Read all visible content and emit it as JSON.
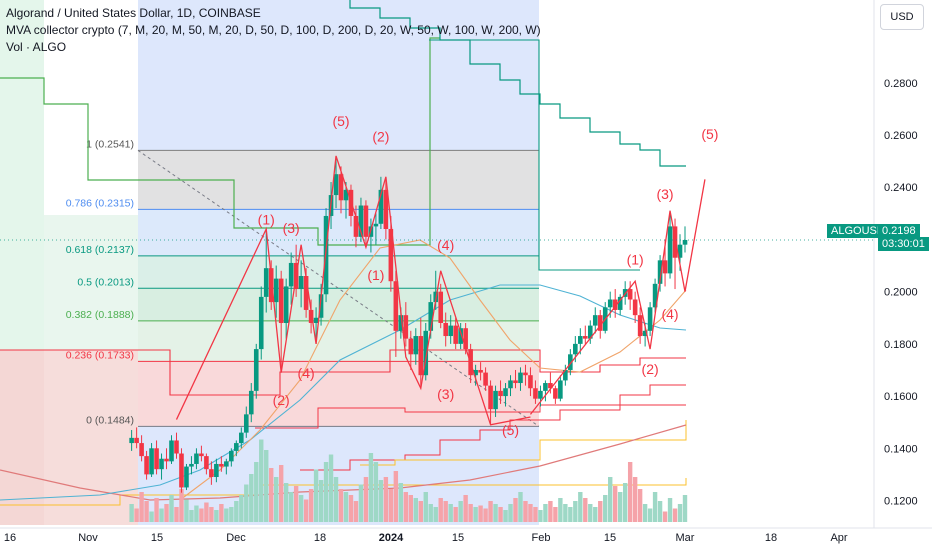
{
  "legend": {
    "title": "Algorand / United States Dollar, 1D, COINBASE",
    "indicator": "MVA collector crypto (7, M, 20, M, 50, M, 20, D, 50, D, 100, D, 200, D, 20, W, 50, W, 100, W, 200, W)",
    "volume": "Vol · ALGO"
  },
  "currency_button": "USD",
  "symbol_badge": {
    "name": "ALGOUSD",
    "price": "0.2198",
    "timer": "03:30:01"
  },
  "colors": {
    "up": "#089981",
    "down": "#f23645",
    "wave": "#f23645",
    "fib_blue": "#4f8df0"
  },
  "chart_data": {
    "type": "candlestick",
    "y_axis": {
      "ticks": [
        "0.2800",
        "0.2600",
        "0.2400",
        "0.2200",
        "0.2000",
        "0.1800",
        "0.1600",
        "0.1400",
        "0.1200"
      ],
      "range": [
        0.111,
        0.301
      ]
    },
    "x_axis": {
      "ticks": [
        "16",
        "Nov",
        "15",
        "Dec",
        "18",
        "2024",
        "15",
        "Feb",
        "15",
        "Mar",
        "18",
        "Apr"
      ]
    },
    "fib_levels": [
      {
        "label": "1 (0.2541)",
        "value": 0.2541
      },
      {
        "label": "0.786 (0.2315)",
        "value": 0.2315
      },
      {
        "label": "0.618 (0.2137)",
        "value": 0.2137
      },
      {
        "label": "0.5 (0.2013)",
        "value": 0.2013
      },
      {
        "label": "0.382 (0.1888)",
        "value": 0.1888
      },
      {
        "label": "0.236 (0.1733)",
        "value": 0.1733
      },
      {
        "label": "0 (0.1484)",
        "value": 0.1484
      }
    ],
    "wave_labels": [
      {
        "text": "(1)",
        "x": "2023-12-08",
        "y": 0.2257
      },
      {
        "text": "(2)",
        "x": "2023-12-11",
        "y": 0.1565
      },
      {
        "text": "(3)",
        "x": "2023-12-13",
        "y": 0.2225
      },
      {
        "text": "(4)",
        "x": "2023-12-16",
        "y": 0.167
      },
      {
        "text": "(5)",
        "x": "2023-12-23",
        "y": 0.2635
      },
      {
        "text": "(1)",
        "x": "2023-12-30",
        "y": 0.2045
      },
      {
        "text": "(2)",
        "x": "2023-12-31",
        "y": 0.2575
      },
      {
        "text": "(3)",
        "x": "2024-01-13",
        "y": 0.1588
      },
      {
        "text": "(4)",
        "x": "2024-01-13",
        "y": 0.216
      },
      {
        "text": "(5)",
        "x": "2024-01-26",
        "y": 0.145
      },
      {
        "text": "(1)",
        "x": "2024-02-20",
        "y": 0.2105
      },
      {
        "text": "(2)",
        "x": "2024-02-23",
        "y": 0.1685
      },
      {
        "text": "(3)",
        "x": "2024-02-26",
        "y": 0.2355
      },
      {
        "text": "(4)",
        "x": "2024-02-27",
        "y": 0.1895
      },
      {
        "text": "(5)",
        "x": "2024-03-06",
        "y": 0.2585
      }
    ],
    "wave_paths": [
      [
        [
          "2023-11-20",
          0.151
        ],
        [
          "2023-12-08",
          0.224
        ],
        [
          "2023-12-11",
          0.169
        ],
        [
          "2023-12-15",
          0.218
        ],
        [
          "2023-12-18",
          0.18
        ],
        [
          "2023-12-22",
          0.252
        ],
        [
          "2023-12-28",
          0.217
        ],
        [
          "2024-01-01",
          0.244
        ],
        [
          "2024-01-05",
          0.175
        ],
        [
          "2024-01-08",
          0.163
        ],
        [
          "2024-01-12",
          0.208
        ],
        [
          "2024-01-22",
          0.149
        ],
        [
          "2024-01-30",
          0.152
        ]
      ],
      [
        [
          "2024-01-30",
          0.153
        ],
        [
          "2024-02-20",
          0.204
        ],
        [
          "2024-02-23",
          0.178
        ],
        [
          "2024-02-27",
          0.231
        ],
        [
          "2024-03-01",
          0.2
        ],
        [
          "2024-03-05",
          0.243
        ]
      ]
    ],
    "candles": [
      [
        "2023-11-11",
        0.142,
        0.147,
        0.139,
        0.144
      ],
      [
        "2023-11-12",
        0.144,
        0.148,
        0.14,
        0.142
      ],
      [
        "2023-11-13",
        0.142,
        0.145,
        0.135,
        0.137
      ],
      [
        "2023-11-14",
        0.137,
        0.139,
        0.128,
        0.13
      ],
      [
        "2023-11-15",
        0.13,
        0.142,
        0.129,
        0.14
      ],
      [
        "2023-11-16",
        0.14,
        0.143,
        0.13,
        0.132
      ],
      [
        "2023-11-17",
        0.132,
        0.138,
        0.128,
        0.136
      ],
      [
        "2023-11-18",
        0.136,
        0.14,
        0.132,
        0.135
      ],
      [
        "2023-11-19",
        0.135,
        0.145,
        0.134,
        0.143
      ],
      [
        "2023-11-20",
        0.143,
        0.146,
        0.136,
        0.138
      ],
      [
        "2023-11-21",
        0.138,
        0.14,
        0.123,
        0.125
      ],
      [
        "2023-11-22",
        0.125,
        0.134,
        0.124,
        0.133
      ],
      [
        "2023-11-23",
        0.133,
        0.137,
        0.13,
        0.134
      ],
      [
        "2023-11-24",
        0.134,
        0.14,
        0.132,
        0.138
      ],
      [
        "2023-11-25",
        0.138,
        0.141,
        0.135,
        0.137
      ],
      [
        "2023-11-26",
        0.137,
        0.138,
        0.13,
        0.132
      ],
      [
        "2023-11-27",
        0.132,
        0.135,
        0.126,
        0.129
      ],
      [
        "2023-11-28",
        0.129,
        0.136,
        0.127,
        0.134
      ],
      [
        "2023-11-29",
        0.134,
        0.137,
        0.131,
        0.133
      ],
      [
        "2023-11-30",
        0.133,
        0.136,
        0.13,
        0.135
      ],
      [
        "2023-12-01",
        0.135,
        0.14,
        0.133,
        0.139
      ],
      [
        "2023-12-02",
        0.139,
        0.143,
        0.137,
        0.142
      ],
      [
        "2023-12-03",
        0.142,
        0.148,
        0.14,
        0.146
      ],
      [
        "2023-12-04",
        0.146,
        0.156,
        0.144,
        0.153
      ],
      [
        "2023-12-05",
        0.153,
        0.165,
        0.15,
        0.162
      ],
      [
        "2023-12-06",
        0.162,
        0.18,
        0.159,
        0.178
      ],
      [
        "2023-12-07",
        0.178,
        0.202,
        0.174,
        0.198
      ],
      [
        "2023-12-08",
        0.198,
        0.224,
        0.192,
        0.209
      ],
      [
        "2023-12-09",
        0.209,
        0.212,
        0.193,
        0.196
      ],
      [
        "2023-12-10",
        0.196,
        0.21,
        0.19,
        0.205
      ],
      [
        "2023-12-11",
        0.205,
        0.208,
        0.169,
        0.188
      ],
      [
        "2023-12-12",
        0.188,
        0.205,
        0.182,
        0.202
      ],
      [
        "2023-12-13",
        0.202,
        0.215,
        0.195,
        0.211
      ],
      [
        "2023-12-14",
        0.211,
        0.218,
        0.198,
        0.201
      ],
      [
        "2023-12-15",
        0.201,
        0.212,
        0.194,
        0.206
      ],
      [
        "2023-12-16",
        0.206,
        0.209,
        0.19,
        0.193
      ],
      [
        "2023-12-17",
        0.193,
        0.197,
        0.184,
        0.188
      ],
      [
        "2023-12-18",
        0.188,
        0.194,
        0.18,
        0.19
      ],
      [
        "2023-12-19",
        0.19,
        0.203,
        0.187,
        0.199
      ],
      [
        "2023-12-20",
        0.199,
        0.232,
        0.196,
        0.229
      ],
      [
        "2023-12-21",
        0.229,
        0.242,
        0.224,
        0.237
      ],
      [
        "2023-12-22",
        0.237,
        0.252,
        0.232,
        0.245
      ],
      [
        "2023-12-23",
        0.245,
        0.248,
        0.23,
        0.235
      ],
      [
        "2023-12-24",
        0.235,
        0.242,
        0.228,
        0.239
      ],
      [
        "2023-12-25",
        0.239,
        0.241,
        0.225,
        0.229
      ],
      [
        "2023-12-26",
        0.229,
        0.233,
        0.217,
        0.221
      ],
      [
        "2023-12-27",
        0.221,
        0.236,
        0.219,
        0.233
      ],
      [
        "2023-12-28",
        0.233,
        0.235,
        0.217,
        0.221
      ],
      [
        "2023-12-29",
        0.221,
        0.228,
        0.215,
        0.225
      ],
      [
        "2023-12-30",
        0.225,
        0.23,
        0.218,
        0.226
      ],
      [
        "2023-12-31",
        0.226,
        0.244,
        0.224,
        0.239
      ],
      [
        "2024-01-01",
        0.239,
        0.243,
        0.22,
        0.224
      ],
      [
        "2024-01-02",
        0.224,
        0.229,
        0.2,
        0.204
      ],
      [
        "2024-01-03",
        0.204,
        0.208,
        0.175,
        0.185
      ],
      [
        "2024-01-04",
        0.185,
        0.194,
        0.182,
        0.191
      ],
      [
        "2024-01-05",
        0.191,
        0.196,
        0.179,
        0.182
      ],
      [
        "2024-01-06",
        0.182,
        0.185,
        0.17,
        0.176
      ],
      [
        "2024-01-07",
        0.176,
        0.186,
        0.172,
        0.183
      ],
      [
        "2024-01-08",
        0.183,
        0.19,
        0.163,
        0.168
      ],
      [
        "2024-01-09",
        0.168,
        0.188,
        0.166,
        0.185
      ],
      [
        "2024-01-10",
        0.185,
        0.199,
        0.182,
        0.196
      ],
      [
        "2024-01-11",
        0.196,
        0.208,
        0.193,
        0.2
      ],
      [
        "2024-01-12",
        0.2,
        0.203,
        0.186,
        0.188
      ],
      [
        "2024-01-13",
        0.188,
        0.192,
        0.179,
        0.183
      ],
      [
        "2024-01-14",
        0.183,
        0.191,
        0.18,
        0.187
      ],
      [
        "2024-01-15",
        0.187,
        0.19,
        0.178,
        0.18
      ],
      [
        "2024-01-16",
        0.18,
        0.188,
        0.178,
        0.186
      ],
      [
        "2024-01-17",
        0.186,
        0.188,
        0.176,
        0.178
      ],
      [
        "2024-01-18",
        0.178,
        0.18,
        0.165,
        0.168
      ],
      [
        "2024-01-19",
        0.168,
        0.172,
        0.164,
        0.17
      ],
      [
        "2024-01-20",
        0.17,
        0.173,
        0.166,
        0.169
      ],
      [
        "2024-01-21",
        0.169,
        0.171,
        0.162,
        0.164
      ],
      [
        "2024-01-22",
        0.164,
        0.166,
        0.149,
        0.155
      ],
      [
        "2024-01-23",
        0.155,
        0.164,
        0.152,
        0.162
      ],
      [
        "2024-01-24",
        0.162,
        0.166,
        0.157,
        0.16
      ],
      [
        "2024-01-25",
        0.16,
        0.165,
        0.156,
        0.163
      ],
      [
        "2024-01-26",
        0.163,
        0.168,
        0.16,
        0.166
      ],
      [
        "2024-01-27",
        0.166,
        0.17,
        0.163,
        0.165
      ],
      [
        "2024-01-28",
        0.165,
        0.171,
        0.162,
        0.169
      ],
      [
        "2024-01-29",
        0.169,
        0.172,
        0.164,
        0.168
      ],
      [
        "2024-01-30",
        0.168,
        0.171,
        0.16,
        0.163
      ],
      [
        "2024-01-31",
        0.163,
        0.166,
        0.157,
        0.159
      ],
      [
        "2024-02-01",
        0.159,
        0.164,
        0.156,
        0.162
      ],
      [
        "2024-02-02",
        0.162,
        0.166,
        0.158,
        0.165
      ],
      [
        "2024-02-03",
        0.165,
        0.169,
        0.161,
        0.163
      ],
      [
        "2024-02-04",
        0.163,
        0.164,
        0.157,
        0.159
      ],
      [
        "2024-02-05",
        0.159,
        0.168,
        0.158,
        0.166
      ],
      [
        "2024-02-06",
        0.166,
        0.172,
        0.164,
        0.17
      ],
      [
        "2024-02-07",
        0.17,
        0.178,
        0.168,
        0.176
      ],
      [
        "2024-02-08",
        0.176,
        0.183,
        0.173,
        0.18
      ],
      [
        "2024-02-09",
        0.18,
        0.186,
        0.176,
        0.183
      ],
      [
        "2024-02-10",
        0.183,
        0.187,
        0.18,
        0.182
      ],
      [
        "2024-02-11",
        0.182,
        0.189,
        0.18,
        0.187
      ],
      [
        "2024-02-12",
        0.187,
        0.194,
        0.184,
        0.191
      ],
      [
        "2024-02-13",
        0.191,
        0.193,
        0.182,
        0.185
      ],
      [
        "2024-02-14",
        0.185,
        0.196,
        0.184,
        0.194
      ],
      [
        "2024-02-15",
        0.194,
        0.2,
        0.19,
        0.197
      ],
      [
        "2024-02-16",
        0.197,
        0.201,
        0.19,
        0.193
      ],
      [
        "2024-02-17",
        0.193,
        0.199,
        0.191,
        0.198
      ],
      [
        "2024-02-18",
        0.198,
        0.204,
        0.195,
        0.201
      ],
      [
        "2024-02-19",
        0.201,
        0.204,
        0.193,
        0.197
      ],
      [
        "2024-02-20",
        0.197,
        0.2,
        0.188,
        0.191
      ],
      [
        "2024-02-21",
        0.191,
        0.194,
        0.18,
        0.183
      ],
      [
        "2024-02-22",
        0.183,
        0.188,
        0.179,
        0.185
      ],
      [
        "2024-02-23",
        0.185,
        0.196,
        0.183,
        0.194
      ],
      [
        "2024-02-24",
        0.194,
        0.205,
        0.192,
        0.203
      ],
      [
        "2024-02-25",
        0.203,
        0.214,
        0.2,
        0.212
      ],
      [
        "2024-02-26",
        0.212,
        0.22,
        0.202,
        0.207
      ],
      [
        "2024-02-27",
        0.207,
        0.231,
        0.205,
        0.225
      ],
      [
        "2024-02-28",
        0.225,
        0.228,
        0.201,
        0.213
      ],
      [
        "2024-02-29",
        0.213,
        0.222,
        0.208,
        0.218
      ],
      [
        "2024-03-01",
        0.218,
        0.225,
        0.215,
        0.2198
      ]
    ]
  }
}
